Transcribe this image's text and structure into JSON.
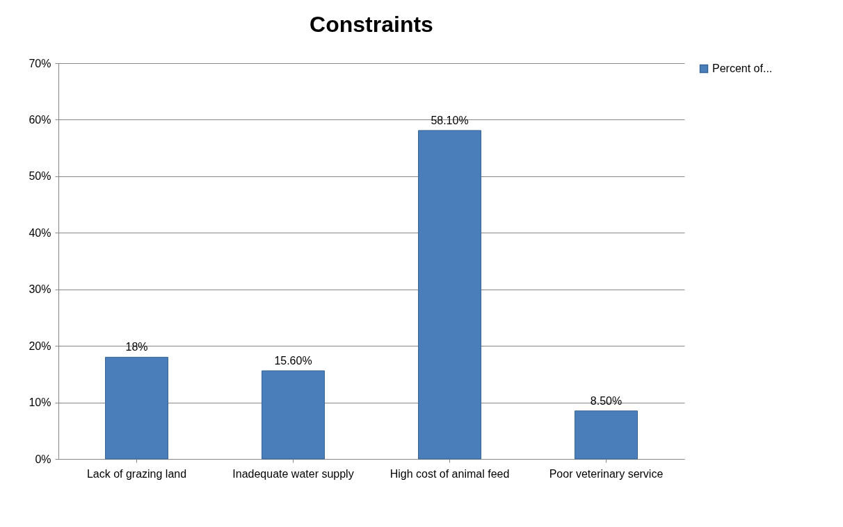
{
  "chart_data": {
    "type": "bar",
    "title": "Constraints",
    "categories": [
      "Lack of grazing land",
      "Inadequate water supply",
      "High cost of animal feed",
      "Poor veterinary service"
    ],
    "series": [
      {
        "name": "Percent of...",
        "color": "#4a7ebb",
        "values": [
          18,
          15.6,
          58.1,
          8.5
        ]
      }
    ],
    "value_labels": [
      "18%",
      "15.60%",
      "58.10%",
      "8.50%"
    ],
    "ylim": [
      0,
      70
    ],
    "yticks": [
      {
        "value": 0,
        "label": "0%"
      },
      {
        "value": 10,
        "label": "10%"
      },
      {
        "value": 20,
        "label": "20%"
      },
      {
        "value": 30,
        "label": "30%"
      },
      {
        "value": 40,
        "label": "40%"
      },
      {
        "value": 50,
        "label": "50%"
      },
      {
        "value": 60,
        "label": "60%"
      },
      {
        "value": 70,
        "label": "70%"
      }
    ],
    "grid": "y",
    "legend": "right"
  }
}
